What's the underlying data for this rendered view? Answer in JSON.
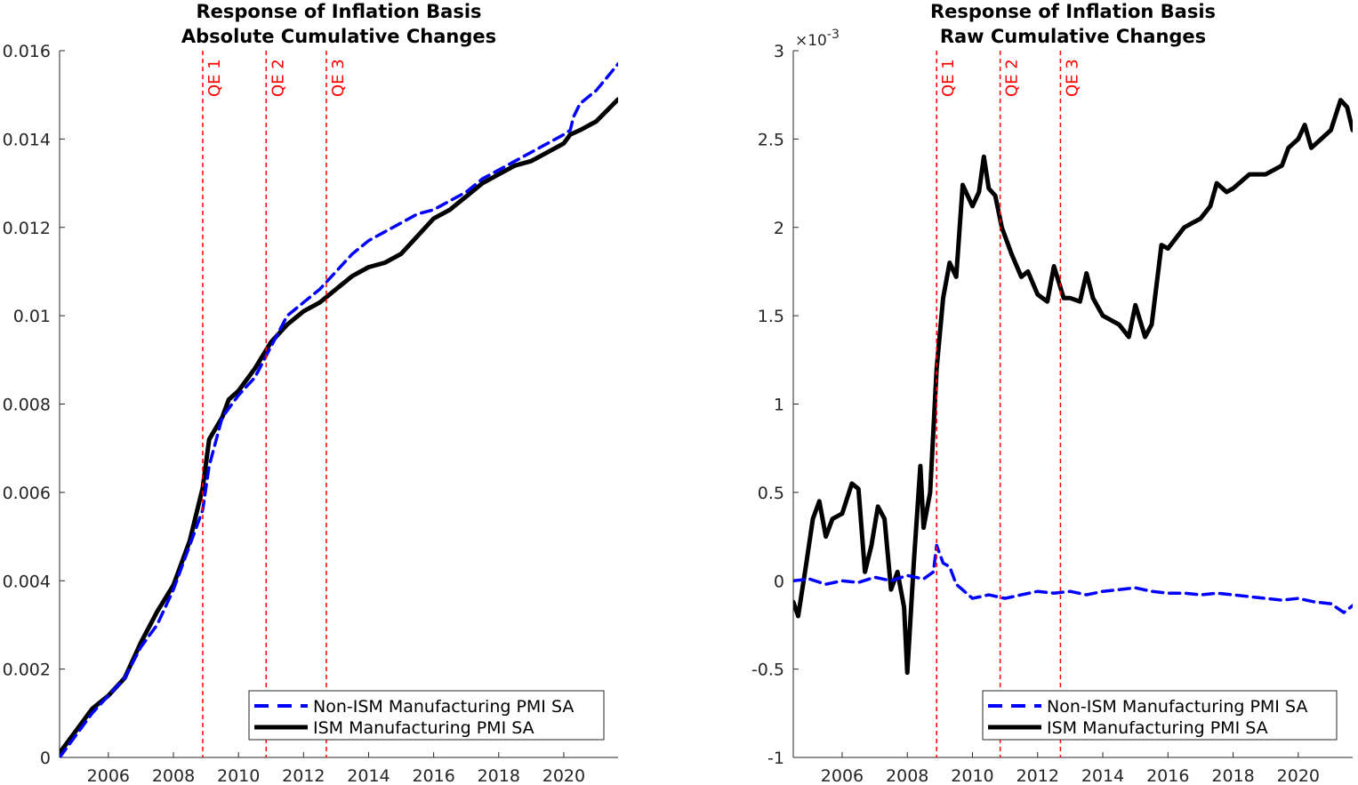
{
  "chart_data": [
    {
      "type": "line",
      "title": [
        "Response of Inflation Basis",
        "Absolute Cumulative Changes"
      ],
      "xlim": [
        2004.5,
        2021.67
      ],
      "ylim": [
        0,
        0.016
      ],
      "xticks": [
        2006,
        2008,
        2010,
        2012,
        2014,
        2016,
        2018,
        2020
      ],
      "xtick_labels": [
        "2006",
        "2008",
        "2010",
        "2012",
        "2014",
        "2016",
        "2018",
        "2020"
      ],
      "yticks": [
        0,
        0.002,
        0.004,
        0.006,
        0.008,
        0.01,
        0.012,
        0.014,
        0.016
      ],
      "ytick_labels": [
        "0",
        "0.002",
        "0.004",
        "0.006",
        "0.008",
        "0.01",
        "0.012",
        "0.014",
        "0.016"
      ],
      "exponent_label": "",
      "legend_position": "bottom-right",
      "vlines": [
        {
          "label": "QE 1",
          "x": 2008.9
        },
        {
          "label": "QE 2",
          "x": 2010.85
        },
        {
          "label": "QE 3",
          "x": 2012.7
        }
      ],
      "series": [
        {
          "name": "Non-ISM Manufacturing PMI SA",
          "style": "dashed",
          "color": "#0000ff",
          "points": [
            [
              2004.5,
              0
            ],
            [
              2005,
              0.0005
            ],
            [
              2005.5,
              0.001
            ],
            [
              2006,
              0.0014
            ],
            [
              2006.5,
              0.0018
            ],
            [
              2007,
              0.0025
            ],
            [
              2007.5,
              0.003
            ],
            [
              2008,
              0.0038
            ],
            [
              2008.5,
              0.0048
            ],
            [
              2008.9,
              0.0056
            ],
            [
              2009.1,
              0.0066
            ],
            [
              2009.5,
              0.0077
            ],
            [
              2010,
              0.0082
            ],
            [
              2010.5,
              0.0086
            ],
            [
              2011,
              0.0093
            ],
            [
              2011.5,
              0.01
            ],
            [
              2012,
              0.0103
            ],
            [
              2012.5,
              0.0106
            ],
            [
              2013,
              0.011
            ],
            [
              2013.5,
              0.0114
            ],
            [
              2014,
              0.0117
            ],
            [
              2014.5,
              0.0119
            ],
            [
              2015,
              0.0121
            ],
            [
              2015.5,
              0.0123
            ],
            [
              2016,
              0.0124
            ],
            [
              2016.5,
              0.0126
            ],
            [
              2017,
              0.0128
            ],
            [
              2017.5,
              0.0131
            ],
            [
              2018,
              0.0133
            ],
            [
              2018.5,
              0.0135
            ],
            [
              2019,
              0.0137
            ],
            [
              2019.5,
              0.0139
            ],
            [
              2020,
              0.0141
            ],
            [
              2020.2,
              0.0142
            ],
            [
              2020.3,
              0.0145
            ],
            [
              2020.5,
              0.0148
            ],
            [
              2021,
              0.0151
            ],
            [
              2021.67,
              0.0157
            ]
          ]
        },
        {
          "name": "ISM Manufacturing PMI SA",
          "style": "solid",
          "color": "#000000",
          "points": [
            [
              2004.5,
              0.0001
            ],
            [
              2005,
              0.0006
            ],
            [
              2005.5,
              0.0011
            ],
            [
              2006,
              0.0014
            ],
            [
              2006.5,
              0.0018
            ],
            [
              2007,
              0.0026
            ],
            [
              2007.5,
              0.0033
            ],
            [
              2008,
              0.0039
            ],
            [
              2008.5,
              0.0049
            ],
            [
              2008.9,
              0.0061
            ],
            [
              2009.1,
              0.0072
            ],
            [
              2009.5,
              0.0077
            ],
            [
              2009.7,
              0.0081
            ],
            [
              2010,
              0.0083
            ],
            [
              2010.5,
              0.0088
            ],
            [
              2011,
              0.0094
            ],
            [
              2011.5,
              0.0098
            ],
            [
              2012,
              0.0101
            ],
            [
              2012.5,
              0.0103
            ],
            [
              2013,
              0.0106
            ],
            [
              2013.5,
              0.0109
            ],
            [
              2014,
              0.0111
            ],
            [
              2014.5,
              0.0112
            ],
            [
              2015,
              0.0114
            ],
            [
              2015.5,
              0.0118
            ],
            [
              2016,
              0.0122
            ],
            [
              2016.5,
              0.0124
            ],
            [
              2017,
              0.0127
            ],
            [
              2017.5,
              0.013
            ],
            [
              2018,
              0.0132
            ],
            [
              2018.5,
              0.0134
            ],
            [
              2019,
              0.0135
            ],
            [
              2019.5,
              0.0137
            ],
            [
              2020,
              0.0139
            ],
            [
              2020.2,
              0.0141
            ],
            [
              2020.5,
              0.0142
            ],
            [
              2021,
              0.0144
            ],
            [
              2021.67,
              0.0149
            ]
          ]
        }
      ]
    },
    {
      "type": "line",
      "title": [
        "Response of Inflation Basis",
        "Raw Cumulative Changes"
      ],
      "xlim": [
        2004.5,
        2021.67
      ],
      "ylim": [
        -1,
        3
      ],
      "xticks": [
        2006,
        2008,
        2010,
        2012,
        2014,
        2016,
        2018,
        2020
      ],
      "xtick_labels": [
        "2006",
        "2008",
        "2010",
        "2012",
        "2014",
        "2016",
        "2018",
        "2020"
      ],
      "yticks": [
        -1,
        -0.5,
        0,
        0.5,
        1,
        1.5,
        2,
        2.5,
        3
      ],
      "ytick_labels": [
        "-1",
        "-0.5",
        "0",
        "0.5",
        "1",
        "1.5",
        "2",
        "2.5",
        "3"
      ],
      "exponent_label": "×10",
      "exponent_power": "-3",
      "legend_position": "bottom-right",
      "vlines": [
        {
          "label": "QE 1",
          "x": 2008.9
        },
        {
          "label": "QE 2",
          "x": 2010.85
        },
        {
          "label": "QE 3",
          "x": 2012.7
        }
      ],
      "series": [
        {
          "name": "Non-ISM Manufacturing PMI SA",
          "style": "dashed",
          "color": "#0000ff",
          "points": [
            [
              2004.5,
              0
            ],
            [
              2005,
              0.01
            ],
            [
              2005.5,
              -0.02
            ],
            [
              2006,
              0
            ],
            [
              2006.5,
              -0.01
            ],
            [
              2007,
              0.02
            ],
            [
              2007.5,
              0
            ],
            [
              2008,
              0.03
            ],
            [
              2008.5,
              0.01
            ],
            [
              2008.8,
              0.05
            ],
            [
              2008.9,
              0.2
            ],
            [
              2009.1,
              0.1
            ],
            [
              2009.3,
              0.08
            ],
            [
              2009.5,
              -0.02
            ],
            [
              2010,
              -0.1
            ],
            [
              2010.5,
              -0.08
            ],
            [
              2011,
              -0.1
            ],
            [
              2011.5,
              -0.08
            ],
            [
              2012,
              -0.06
            ],
            [
              2012.5,
              -0.07
            ],
            [
              2013,
              -0.06
            ],
            [
              2013.5,
              -0.08
            ],
            [
              2014,
              -0.06
            ],
            [
              2014.5,
              -0.05
            ],
            [
              2015,
              -0.04
            ],
            [
              2015.5,
              -0.06
            ],
            [
              2016,
              -0.07
            ],
            [
              2016.5,
              -0.07
            ],
            [
              2017,
              -0.08
            ],
            [
              2017.5,
              -0.07
            ],
            [
              2018,
              -0.08
            ],
            [
              2018.5,
              -0.09
            ],
            [
              2019,
              -0.1
            ],
            [
              2019.5,
              -0.11
            ],
            [
              2020,
              -0.1
            ],
            [
              2020.5,
              -0.12
            ],
            [
              2021,
              -0.13
            ],
            [
              2021.4,
              -0.18
            ],
            [
              2021.67,
              -0.14
            ]
          ]
        },
        {
          "name": "ISM Manufacturing PMI SA",
          "style": "solid",
          "color": "#000000",
          "points": [
            [
              2004.5,
              -0.12
            ],
            [
              2004.65,
              -0.2
            ],
            [
              2004.9,
              0.1
            ],
            [
              2005.1,
              0.35
            ],
            [
              2005.3,
              0.45
            ],
            [
              2005.5,
              0.25
            ],
            [
              2005.7,
              0.35
            ],
            [
              2006,
              0.38
            ],
            [
              2006.3,
              0.55
            ],
            [
              2006.5,
              0.52
            ],
            [
              2006.7,
              0.05
            ],
            [
              2006.9,
              0.2
            ],
            [
              2007.1,
              0.42
            ],
            [
              2007.3,
              0.35
            ],
            [
              2007.5,
              -0.05
            ],
            [
              2007.7,
              0.05
            ],
            [
              2007.9,
              -0.15
            ],
            [
              2008,
              -0.52
            ],
            [
              2008.2,
              0.1
            ],
            [
              2008.4,
              0.65
            ],
            [
              2008.5,
              0.3
            ],
            [
              2008.7,
              0.5
            ],
            [
              2008.9,
              1.2
            ],
            [
              2009.1,
              1.6
            ],
            [
              2009.3,
              1.8
            ],
            [
              2009.5,
              1.72
            ],
            [
              2009.7,
              2.24
            ],
            [
              2010,
              2.12
            ],
            [
              2010.2,
              2.2
            ],
            [
              2010.35,
              2.4
            ],
            [
              2010.5,
              2.22
            ],
            [
              2010.7,
              2.18
            ],
            [
              2010.9,
              2.0
            ],
            [
              2011.2,
              1.85
            ],
            [
              2011.5,
              1.72
            ],
            [
              2011.7,
              1.75
            ],
            [
              2012,
              1.62
            ],
            [
              2012.3,
              1.58
            ],
            [
              2012.5,
              1.78
            ],
            [
              2012.8,
              1.6
            ],
            [
              2013,
              1.6
            ],
            [
              2013.3,
              1.58
            ],
            [
              2013.5,
              1.74
            ],
            [
              2013.7,
              1.6
            ],
            [
              2014,
              1.5
            ],
            [
              2014.5,
              1.45
            ],
            [
              2014.8,
              1.38
            ],
            [
              2015,
              1.56
            ],
            [
              2015.3,
              1.38
            ],
            [
              2015.5,
              1.45
            ],
            [
              2015.8,
              1.9
            ],
            [
              2016,
              1.88
            ],
            [
              2016.5,
              2.0
            ],
            [
              2017,
              2.05
            ],
            [
              2017.3,
              2.12
            ],
            [
              2017.5,
              2.25
            ],
            [
              2017.8,
              2.2
            ],
            [
              2018,
              2.22
            ],
            [
              2018.5,
              2.3
            ],
            [
              2019,
              2.3
            ],
            [
              2019.5,
              2.35
            ],
            [
              2019.7,
              2.45
            ],
            [
              2020,
              2.5
            ],
            [
              2020.2,
              2.58
            ],
            [
              2020.4,
              2.45
            ],
            [
              2020.7,
              2.5
            ],
            [
              2021,
              2.55
            ],
            [
              2021.3,
              2.72
            ],
            [
              2021.5,
              2.68
            ],
            [
              2021.67,
              2.55
            ]
          ]
        }
      ]
    }
  ]
}
